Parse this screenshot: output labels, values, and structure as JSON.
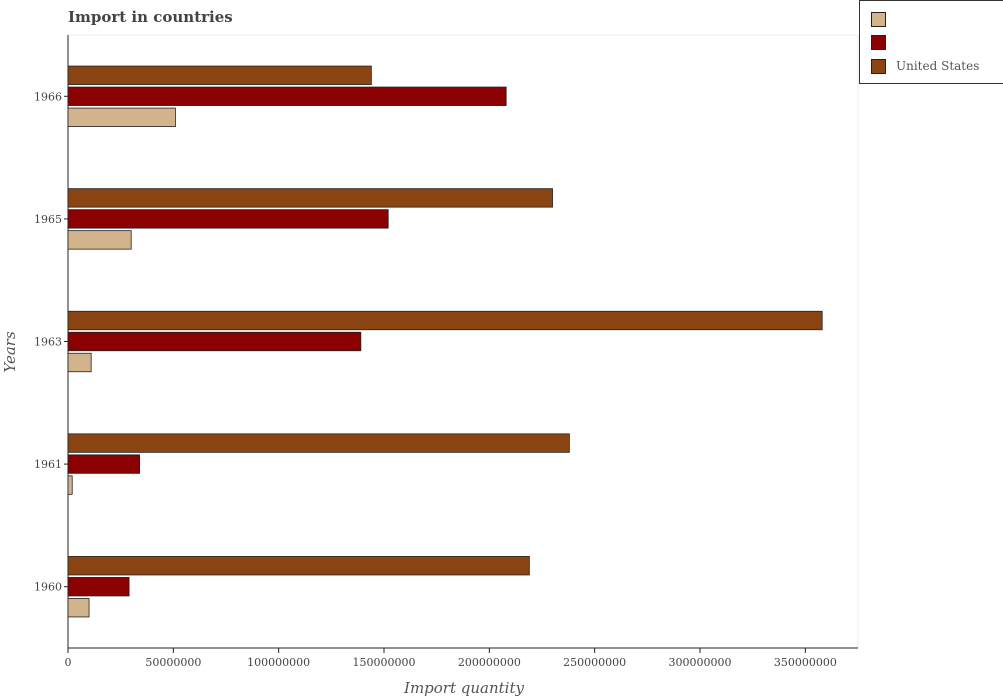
{
  "chart_data": {
    "type": "bar",
    "orientation": "horizontal",
    "title": "Import in countries",
    "xlabel": "Import quantity",
    "ylabel": "Years",
    "categories": [
      "1960",
      "1961",
      "1963",
      "1965",
      "1966"
    ],
    "series": [
      {
        "name": "",
        "color": "#d2b48c",
        "values": [
          10000000,
          2000000,
          11000000,
          30000000,
          51000000
        ]
      },
      {
        "name": "",
        "color": "#8b0000",
        "values": [
          29000000,
          34000000,
          139000000,
          152000000,
          208000000
        ]
      },
      {
        "name": "United States",
        "color": "#8b4513",
        "values": [
          219000000,
          238000000,
          358000000,
          230000000,
          144000000
        ]
      }
    ],
    "xlim": [
      0,
      375000000
    ],
    "xticks": [
      0,
      50000000,
      100000000,
      150000000,
      200000000,
      250000000,
      300000000,
      350000000
    ],
    "xtick_labels": [
      "0",
      "50000000",
      "100000000",
      "150000000",
      "200000000",
      "250000000",
      "300000000",
      "350000000"
    ],
    "legend_position": "top-right",
    "grid": false
  }
}
